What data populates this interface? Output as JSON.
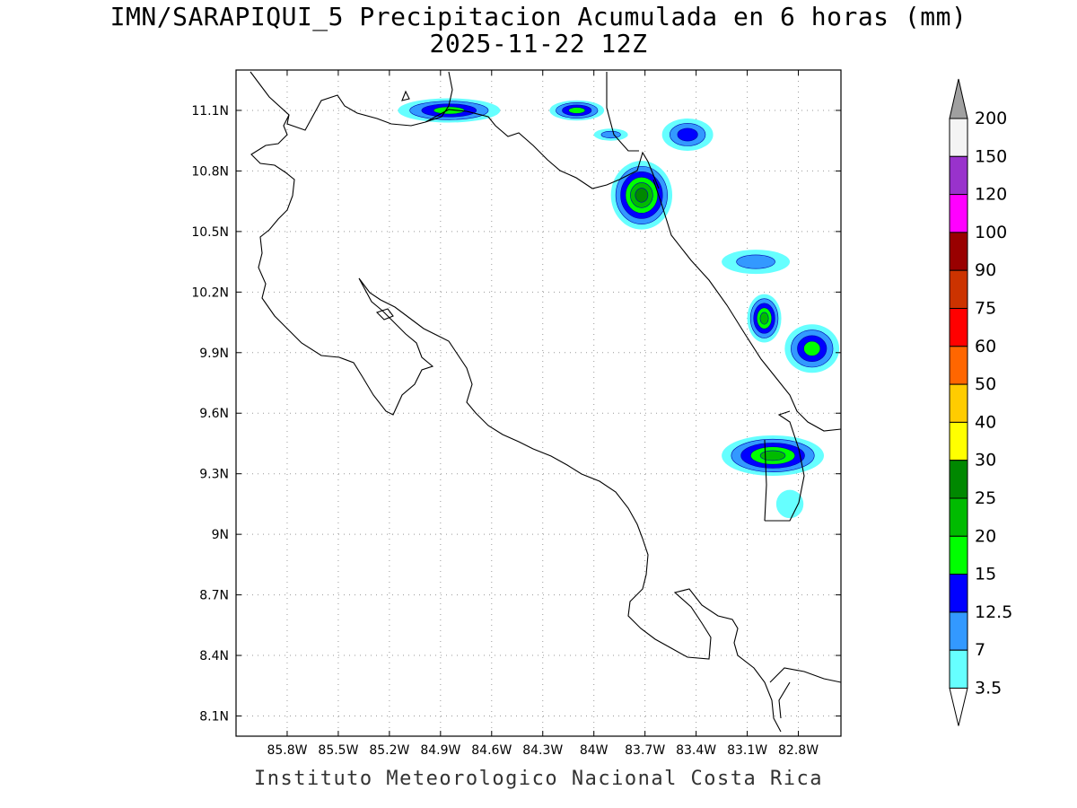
{
  "title": "IMN/SARAPIQUI_5 Precipitacion Acumulada en 6 horas (mm)",
  "subtitle": "2025-11-22 12Z",
  "footer": "Instituto Meteorologico Nacional Costa Rica",
  "map": {
    "lon_range": [
      -86.1,
      -82.55
    ],
    "lat_range": [
      8.0,
      11.3
    ],
    "lon_ticks": [
      {
        "value": -85.8,
        "label": "85.8W"
      },
      {
        "value": -85.5,
        "label": "85.5W"
      },
      {
        "value": -85.2,
        "label": "85.2W"
      },
      {
        "value": -84.9,
        "label": "84.9W"
      },
      {
        "value": -84.6,
        "label": "84.6W"
      },
      {
        "value": -84.3,
        "label": "84.3W"
      },
      {
        "value": -84.0,
        "label": "84W"
      },
      {
        "value": -83.7,
        "label": "83.7W"
      },
      {
        "value": -83.4,
        "label": "83.4W"
      },
      {
        "value": -83.1,
        "label": "83.1W"
      },
      {
        "value": -82.8,
        "label": "82.8W"
      }
    ],
    "lat_ticks": [
      {
        "value": 11.1,
        "label": "11.1N"
      },
      {
        "value": 10.8,
        "label": "10.8N"
      },
      {
        "value": 10.5,
        "label": "10.5N"
      },
      {
        "value": 10.2,
        "label": "10.2N"
      },
      {
        "value": 9.9,
        "label": "9.9N"
      },
      {
        "value": 9.6,
        "label": "9.6N"
      },
      {
        "value": 9.3,
        "label": "9.3N"
      },
      {
        "value": 9.0,
        "label": "9N"
      },
      {
        "value": 8.7,
        "label": "8.7N"
      },
      {
        "value": 8.4,
        "label": "8.4N"
      },
      {
        "value": 8.1,
        "label": "8.1N"
      }
    ],
    "grid": true
  },
  "colorbar": {
    "levels": [
      {
        "label": "200",
        "color": "#a0a0a0"
      },
      {
        "label": "150",
        "color": "#f4f4f4"
      },
      {
        "label": "120",
        "color": "#9932cc"
      },
      {
        "label": "100",
        "color": "#ff00ff"
      },
      {
        "label": "90",
        "color": "#990000"
      },
      {
        "label": "75",
        "color": "#cc3300"
      },
      {
        "label": "60",
        "color": "#ff0000"
      },
      {
        "label": "50",
        "color": "#ff6600"
      },
      {
        "label": "40",
        "color": "#ffcc00"
      },
      {
        "label": "30",
        "color": "#ffff00"
      },
      {
        "label": "25",
        "color": "#008800"
      },
      {
        "label": "20",
        "color": "#00bb00"
      },
      {
        "label": "15",
        "color": "#00ff00"
      },
      {
        "label": "12.5",
        "color": "#0000ff"
      },
      {
        "label": "7",
        "color": "#3399ff"
      },
      {
        "label": "3.5",
        "color": "#66ffff"
      }
    ],
    "bottom_color": "#ffffff"
  },
  "precip_cells": [
    {
      "name": "cell-north-84.9W",
      "lon": -84.85,
      "lat": 11.1,
      "rx": 0.3,
      "ry": 0.06,
      "max": 15
    },
    {
      "name": "cell-north-84.1W",
      "lon": -84.1,
      "lat": 11.1,
      "rx": 0.16,
      "ry": 0.05,
      "max": 15
    },
    {
      "name": "cell-83.9W-10.98N",
      "lon": -83.9,
      "lat": 10.98,
      "rx": 0.1,
      "ry": 0.03,
      "max": 7
    },
    {
      "name": "cell-83.4W-10.98N",
      "lon": -83.45,
      "lat": 10.98,
      "rx": 0.15,
      "ry": 0.08,
      "max": 12.5
    },
    {
      "name": "cell-main-83.7W-10.7N",
      "lon": -83.72,
      "lat": 10.68,
      "rx": 0.18,
      "ry": 0.17,
      "max": 25
    },
    {
      "name": "cell-83.05W-10.35N",
      "lon": -83.05,
      "lat": 10.35,
      "rx": 0.2,
      "ry": 0.06,
      "max": 7
    },
    {
      "name": "cell-83.0W-10.07N",
      "lon": -83.0,
      "lat": 10.07,
      "rx": 0.1,
      "ry": 0.12,
      "max": 20
    },
    {
      "name": "cell-82.7W-9.92N",
      "lon": -82.72,
      "lat": 9.92,
      "rx": 0.16,
      "ry": 0.12,
      "max": 15
    },
    {
      "name": "cell-82.9W-9.4N",
      "lon": -82.95,
      "lat": 9.39,
      "rx": 0.3,
      "ry": 0.1,
      "max": 20
    },
    {
      "name": "cell-82.85W-9.15N",
      "lon": -82.85,
      "lat": 9.15,
      "rx": 0.08,
      "ry": 0.07,
      "max": 3.5
    }
  ]
}
